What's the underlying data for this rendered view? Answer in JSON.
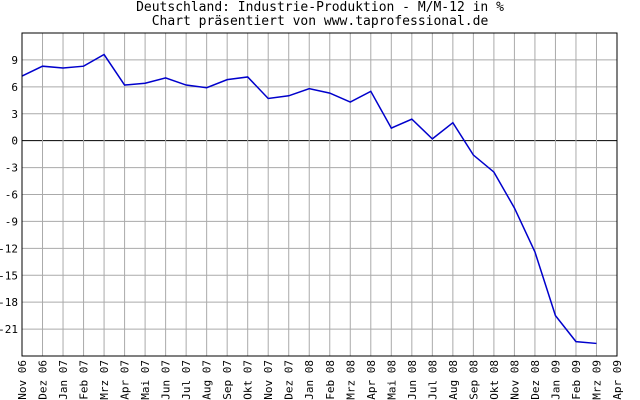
{
  "chart_data": {
    "type": "line",
    "title": "Deutschland: Industrie-Produktion - M/M-12 in %",
    "subtitle": "Chart präsentiert von www.taprofessional.de",
    "categories": [
      "Nov 06",
      "Dez 06",
      "Jan 07",
      "Feb 07",
      "Mrz 07",
      "Apr 07",
      "Mai 07",
      "Jun 07",
      "Jul 07",
      "Aug 07",
      "Sep 07",
      "Okt 07",
      "Nov 07",
      "Dez 07",
      "Jan 08",
      "Feb 08",
      "Mrz 08",
      "Apr 08",
      "Mai 08",
      "Jun 08",
      "Jul 08",
      "Aug 08",
      "Sep 08",
      "Okt 08",
      "Nov 08",
      "Dez 08",
      "Jan 09",
      "Feb 09",
      "Mrz 09",
      "Apr 09"
    ],
    "series": [
      {
        "color": "#0000cc",
        "values": [
          7.2,
          8.3,
          8.1,
          8.3,
          9.6,
          6.2,
          6.4,
          7.0,
          6.2,
          5.9,
          6.8,
          7.1,
          4.7,
          5.0,
          5.8,
          5.3,
          4.3,
          5.5,
          1.4,
          2.4,
          0.2,
          2.0,
          -1.6,
          -3.5,
          -7.5,
          -12.4,
          -19.5,
          -22.4,
          -22.6,
          null
        ]
      }
    ],
    "ylim": [
      -24,
      12
    ],
    "yticks": [
      9,
      6,
      3,
      0,
      -3,
      -6,
      -9,
      -12,
      -15,
      -18,
      -21
    ],
    "grid": true
  }
}
